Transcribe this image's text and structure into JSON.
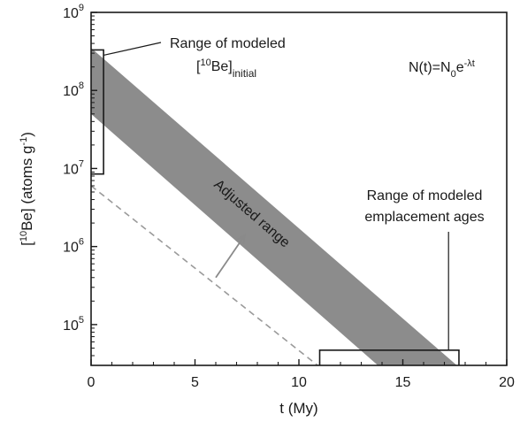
{
  "chart_data": {
    "type": "area",
    "xlabel": "t (My)",
    "ylabel": "[10Be] (atoms g-1)",
    "ylabel_parts": {
      "pre": "[",
      "sup": "10",
      "mid": "Be] (atoms g",
      "sup2": "-1",
      "post": ")"
    },
    "xlim": [
      0,
      20
    ],
    "ylim": [
      30000,
      1000000000
    ],
    "yscale": "log",
    "xticks": [
      {
        "value": 0,
        "label": "0"
      },
      {
        "value": 5,
        "label": "5"
      },
      {
        "value": 10,
        "label": "10"
      },
      {
        "value": 15,
        "label": "15"
      },
      {
        "value": 20,
        "label": "20"
      }
    ],
    "yticks": [
      {
        "value": 100000,
        "base": "10",
        "exp": "5"
      },
      {
        "value": 1000000,
        "base": "10",
        "exp": "6"
      },
      {
        "value": 10000000,
        "base": "10",
        "exp": "7"
      },
      {
        "value": 100000000,
        "base": "10",
        "exp": "8"
      },
      {
        "value": 1000000000,
        "base": "10",
        "exp": "9"
      }
    ],
    "band": {
      "label": "Adjusted range",
      "upper": [
        [
          0,
          350000000
        ],
        [
          17.6,
          30000
        ]
      ],
      "lower": [
        [
          0,
          50000000
        ],
        [
          13.8,
          30000
        ]
      ],
      "color": "#8c8c8c"
    },
    "dashed_line": [
      [
        0,
        6000000
      ],
      [
        10.9,
        30000
      ]
    ],
    "dashed_color": "#9a9a9a",
    "initial_range": {
      "x": [
        0,
        0.6
      ],
      "y": [
        8500000,
        330000000
      ]
    },
    "age_range": {
      "x": [
        11,
        17.7
      ],
      "y": [
        30000,
        47000
      ]
    },
    "arrow": {
      "from": [
        6.0,
        400000
      ],
      "to": [
        7.4,
        1400000
      ]
    },
    "annotations": {
      "initial_label_line1": "Range of modeled",
      "initial_label_line2_pre": "[",
      "initial_label_line2_sup": "10",
      "initial_label_line2_mid": "Be]",
      "initial_label_line2_sub": "initial",
      "age_label_line1": "Range of modeled",
      "age_label_line2": "emplacement ages",
      "equation_pre": "N(t)=N",
      "equation_sub": "0",
      "equation_mid": "e",
      "equation_sup": "-λt"
    }
  }
}
